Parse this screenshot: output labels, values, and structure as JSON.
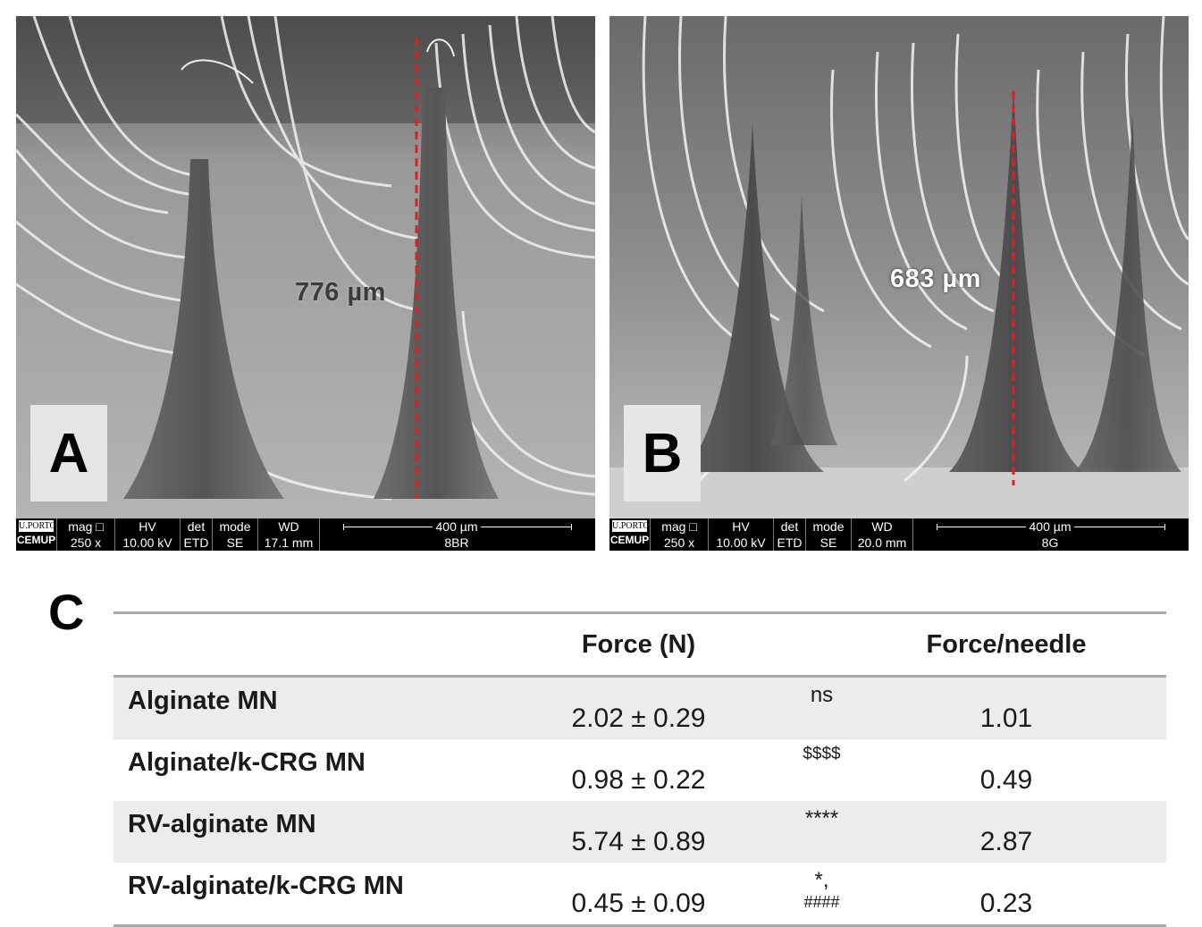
{
  "panels": {
    "a": {
      "label": "A",
      "measurement": "776 µm",
      "infobar": {
        "logo_top": "U.PORTO",
        "logo_bottom": "CEMUP",
        "columns": [
          {
            "header": "mag □",
            "value": "250 x"
          },
          {
            "header": "HV",
            "value": "10.00 kV"
          },
          {
            "header": "det",
            "value": "ETD"
          },
          {
            "header": "mode",
            "value": "SE"
          },
          {
            "header": "WD",
            "value": "17.1 mm"
          }
        ],
        "scale_label": "400 µm",
        "sample_id": "8BR"
      }
    },
    "b": {
      "label": "B",
      "measurement": "683 µm",
      "infobar": {
        "logo_top": "U.PORTO",
        "logo_bottom": "CEMUP",
        "columns": [
          {
            "header": "mag □",
            "value": "250 x"
          },
          {
            "header": "HV",
            "value": "10.00 kV"
          },
          {
            "header": "det",
            "value": "ETD"
          },
          {
            "header": "mode",
            "value": "SE"
          },
          {
            "header": "WD",
            "value": "20.0 mm"
          }
        ],
        "scale_label": "400 µm",
        "sample_id": "8G"
      }
    }
  },
  "table": {
    "label": "C",
    "headers": [
      "",
      "Force (N)",
      "",
      "Force/needle"
    ],
    "rows": [
      {
        "name": "Alginate MN",
        "force": "2.02 ± 0.29",
        "sig": "ns",
        "per_needle": "1.01"
      },
      {
        "name": "Alginate/k-CRG MN",
        "force": "0.98 ± 0.22",
        "sig": "$$$$",
        "per_needle": "0.49"
      },
      {
        "name": "RV-alginate MN",
        "force": "5.74 ± 0.89",
        "sig": "****",
        "per_needle": "2.87"
      },
      {
        "name": "RV-alginate/k-CRG MN",
        "force": "0.45 ± 0.09",
        "sig_main": "*, ",
        "sig_sup": "####",
        "per_needle": "0.23"
      }
    ]
  },
  "colors": {
    "measure_line": "#e0201c",
    "row_shade": "#ececec",
    "rule": "#a9a9a9"
  }
}
